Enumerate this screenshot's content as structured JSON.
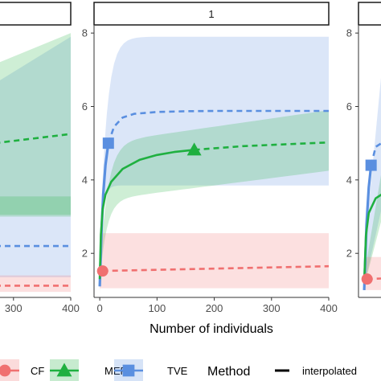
{
  "chart_data": [
    {
      "type": "line",
      "panel": "left (partially visible)",
      "strip_label": "",
      "xlim": [
        0,
        400
      ],
      "ylim": [
        0.8,
        8.2
      ],
      "x_ticks": [
        300,
        400
      ],
      "x_tick_labels": [
        "300",
        "400"
      ],
      "y_ticks": [],
      "series": [
        {
          "name": "MEF",
          "color": "#1fb040",
          "x": [
            150,
            400
          ],
          "y": [
            4.78,
            5.25
          ],
          "band_lower": [
            2.8,
            3.05
          ],
          "band_upper": [
            6.4,
            8.0
          ],
          "style": "dashed"
        },
        {
          "name": "TVE",
          "color": "#5a8fe0",
          "x": [
            150,
            400
          ],
          "y": [
            2.2,
            2.2
          ],
          "band_lower": [
            1.35,
            1.35
          ],
          "band_upper": [
            5.5,
            7.9
          ],
          "style": "dashed"
        },
        {
          "name": "CF",
          "color": "#f07070",
          "x": [
            150,
            400
          ],
          "y": [
            1.12,
            1.12
          ],
          "band_lower": [
            0.95,
            0.95
          ],
          "band_upper": [
            1.4,
            1.4
          ],
          "style": "dashed"
        }
      ],
      "extra_band": {
        "color": "#1fb040",
        "lower": 3.0,
        "upper": 3.55
      }
    },
    {
      "type": "line",
      "panel": "center",
      "strip_label": "1",
      "xlabel": "Number of individuals",
      "xlim": [
        -10,
        400
      ],
      "ylim": [
        0.8,
        8.2
      ],
      "x_ticks": [
        0,
        100,
        200,
        300,
        400
      ],
      "x_tick_labels": [
        "0",
        "100",
        "200",
        "300",
        "400"
      ],
      "y_ticks": [
        2,
        4,
        6,
        8
      ],
      "y_tick_labels": [
        "2",
        "4",
        "6",
        "8"
      ],
      "series": [
        {
          "name": "TVE",
          "color": "#5a8fe0",
          "interpolated": {
            "x": [
              0,
              3,
              6,
              10,
              15
            ],
            "y": [
              1.1,
              2.6,
              3.6,
              4.4,
              5.0
            ]
          },
          "extrapolated": {
            "x": [
              15,
              25,
              40,
              60,
              100,
              150,
              200,
              300,
              400
            ],
            "y": [
              5.0,
              5.45,
              5.7,
              5.8,
              5.85,
              5.87,
              5.88,
              5.88,
              5.88
            ]
          },
          "observed": {
            "x": 15,
            "y": 5.0,
            "shape": "square"
          },
          "band_lower": [
            0.9,
            3.8,
            3.85,
            3.85
          ],
          "band_upper": [
            2.0,
            7.0,
            7.9,
            7.95
          ],
          "band_x": [
            0,
            15,
            150,
            400
          ]
        },
        {
          "name": "MEF",
          "color": "#1fb040",
          "interpolated": {
            "x": [
              0,
              2,
              5,
              10,
              20,
              40,
              70,
              100,
              130,
              165
            ],
            "y": [
              1.3,
              2.5,
              3.2,
              3.6,
              3.95,
              4.3,
              4.55,
              4.68,
              4.76,
              4.82
            ]
          },
          "extrapolated": {
            "x": [
              165,
              250,
              400
            ],
            "y": [
              4.82,
              4.92,
              5.02
            ]
          },
          "observed": {
            "x": 165,
            "y": 4.82,
            "shape": "triangle"
          },
          "band_lower": [
            1.2,
            3.3,
            3.85,
            4.2
          ],
          "band_upper": [
            1.5,
            4.8,
            5.5,
            5.75
          ],
          "band_x": [
            0,
            20,
            100,
            400
          ]
        },
        {
          "name": "CF",
          "color": "#f07070",
          "interpolated": {
            "x": [
              0,
              5
            ],
            "y": [
              1.5,
              1.52
            ]
          },
          "extrapolated": {
            "x": [
              5,
              400
            ],
            "y": [
              1.52,
              1.65
            ]
          },
          "observed": {
            "x": 5,
            "y": 1.52,
            "shape": "circle"
          },
          "band_lower": [
            1.05,
            1.05
          ],
          "band_upper": [
            2.55,
            2.55
          ],
          "band_x": [
            0,
            400
          ]
        }
      ]
    },
    {
      "type": "line",
      "panel": "right (partially visible)",
      "strip_label": "",
      "xlim": [
        -10,
        400
      ],
      "ylim": [
        0.8,
        8.2
      ],
      "y_ticks": [
        2,
        4,
        6,
        8
      ],
      "y_tick_labels": [
        "2",
        "4",
        "6",
        "8"
      ],
      "series": [
        {
          "name": "TVE",
          "color": "#5a8fe0",
          "observed": {
            "x": 12,
            "y": 4.4,
            "shape": "square"
          }
        },
        {
          "name": "MEF",
          "color": "#1fb040",
          "observed": null
        },
        {
          "name": "CF",
          "color": "#f07070",
          "observed": {
            "x": 5,
            "y": 1.3,
            "shape": "circle"
          }
        }
      ]
    }
  ],
  "legend": {
    "entries": [
      {
        "label": "CF",
        "color": "#f07070",
        "shape": "circle"
      },
      {
        "label": "MEF",
        "color": "#1fb040",
        "shape": "triangle"
      },
      {
        "label": "TVE",
        "color": "#5a8fe0",
        "shape": "square"
      }
    ],
    "method_title": "Method",
    "method_entries": [
      {
        "label": "interpolated",
        "style": "solid"
      }
    ]
  },
  "colors": {
    "panel_bg": "#ffffff",
    "strip_bg": "#ffffff",
    "strip_border": "#1a1a1a",
    "axis": "#333333"
  }
}
